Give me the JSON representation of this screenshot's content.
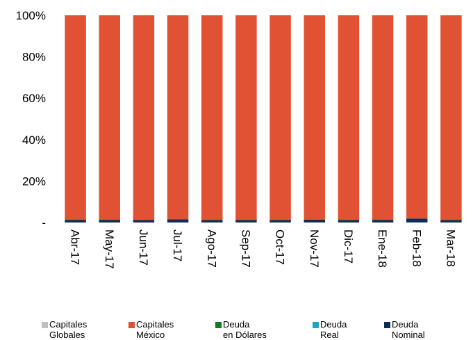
{
  "chart_data": {
    "type": "bar",
    "stacked": true,
    "normalized": true,
    "categories": [
      "Abr-17",
      "May-17",
      "Jun-17",
      "Jul-17",
      "Ago-17",
      "Sep-17",
      "Oct-17",
      "Nov-17",
      "Dic-17",
      "Ene-18",
      "Feb-18",
      "Mar-18"
    ],
    "yticks": [
      "-",
      "20%",
      "40%",
      "60%",
      "80%",
      "100%"
    ],
    "ylim": [
      0,
      100
    ],
    "legend_position": "bottom",
    "series": [
      {
        "name": "Deuda\nNominal",
        "color": "#0f2d52",
        "values": [
          1.3,
          1.3,
          1.2,
          1.5,
          1.2,
          1.2,
          1.2,
          1.4,
          1.2,
          1.3,
          1.9,
          1.2
        ]
      },
      {
        "name": "Deuda\nReal",
        "color": "#1aa6c4",
        "values": [
          0,
          0,
          0,
          0,
          0,
          0,
          0,
          0,
          0,
          0,
          0,
          0
        ]
      },
      {
        "name": "Deuda\nen Dólares",
        "color": "#0f7d1e",
        "values": [
          0,
          0,
          0,
          0,
          0,
          0,
          0,
          0,
          0,
          0,
          0,
          0
        ]
      },
      {
        "name": "Capitales\nMéxico",
        "color": "#e05233",
        "values": [
          98.7,
          98.7,
          98.8,
          98.5,
          98.8,
          98.8,
          98.8,
          98.6,
          98.8,
          98.7,
          98.1,
          98.8
        ]
      },
      {
        "name": "Capitales\nGlobales",
        "color": "#bfbfbf",
        "values": [
          0,
          0,
          0,
          0,
          0,
          0,
          0,
          0,
          0,
          0,
          0,
          0
        ]
      }
    ],
    "legend_order": [
      "Capitales\nGlobales",
      "Capitales\nMéxico",
      "Deuda\nen Dólares",
      "Deuda\nReal",
      "Deuda\nNominal"
    ]
  }
}
